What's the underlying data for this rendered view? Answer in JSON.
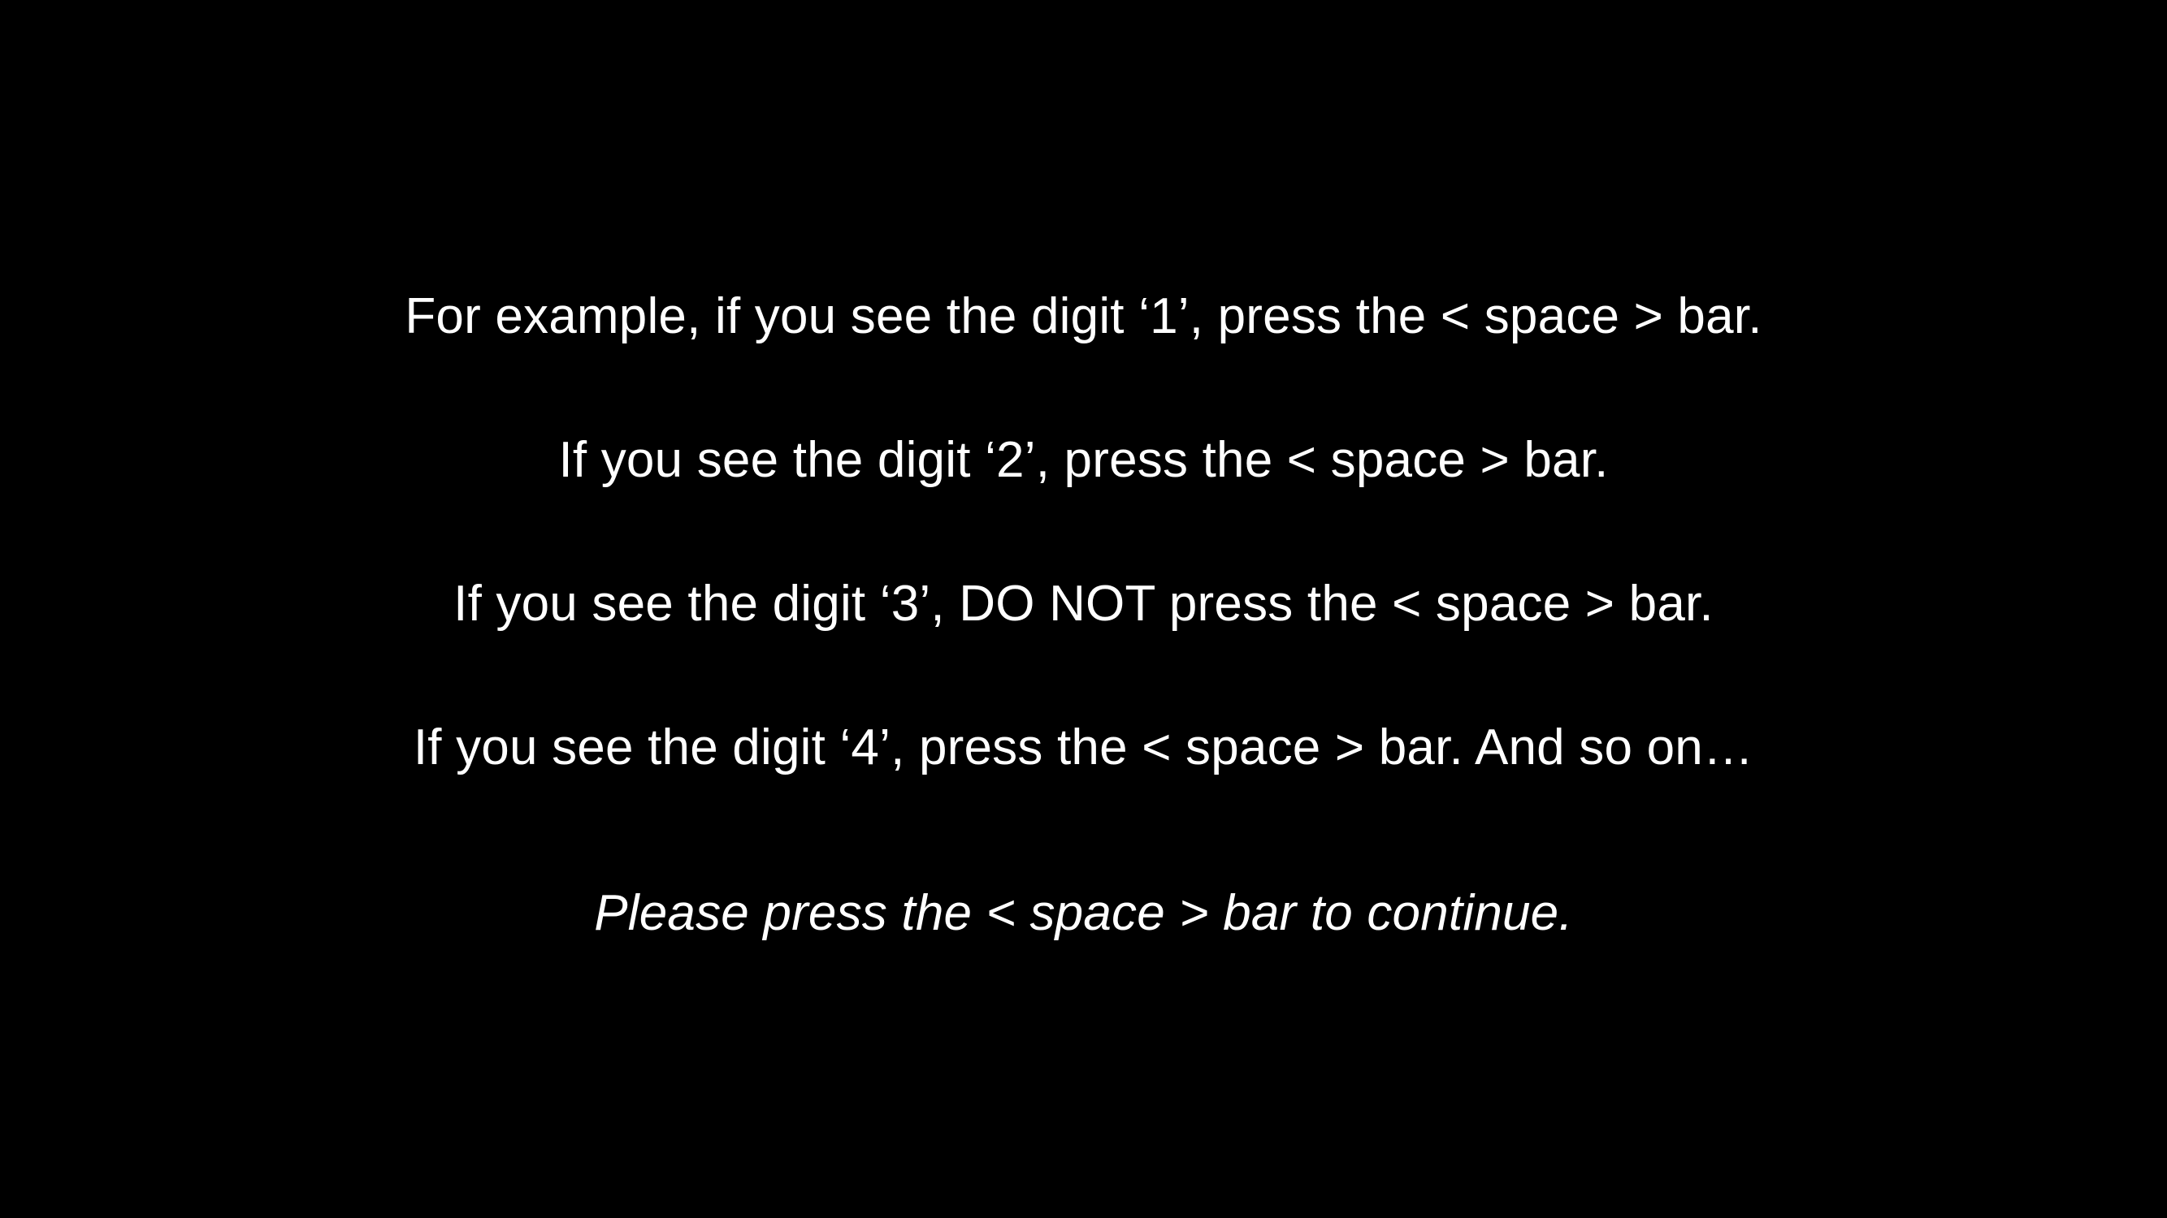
{
  "instructions": {
    "line1": "For example, if you see the digit ‘1’, press the < space > bar.",
    "line2": "If you see the digit ‘2’, press the < space > bar.",
    "line3": "If you see the digit ‘3’, DO NOT press the < space > bar.",
    "line4": "If you see the digit ‘4’, press the < space > bar. And so on…"
  },
  "prompt": {
    "continue": "Please press the < space > bar to continue."
  },
  "colors": {
    "background": "#000000",
    "text": "#ffffff"
  }
}
